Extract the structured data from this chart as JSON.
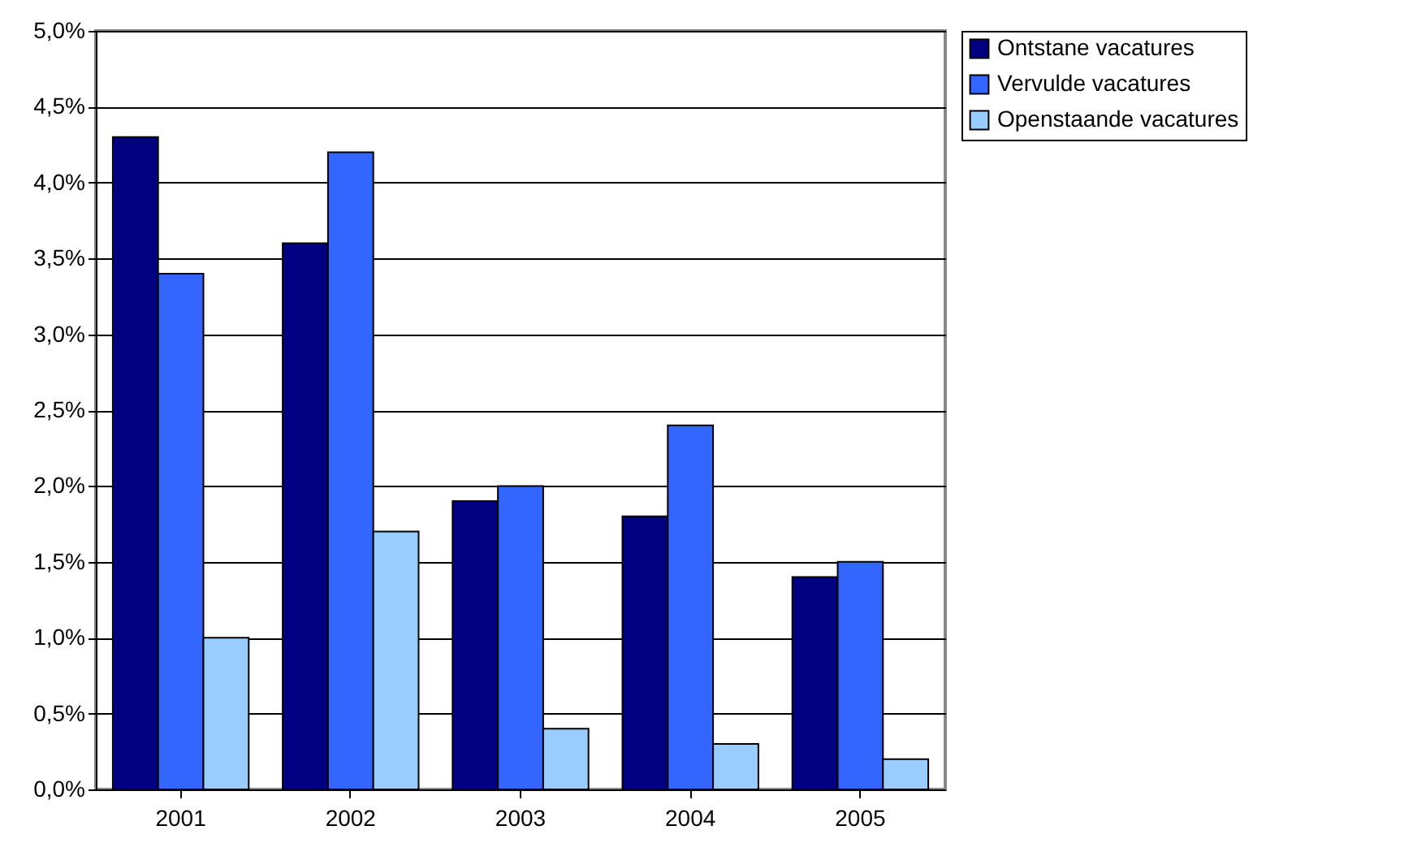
{
  "chart_data": {
    "type": "bar",
    "categories": [
      "2001",
      "2002",
      "2003",
      "2004",
      "2005"
    ],
    "series": [
      {
        "name": "Ontstane vacatures",
        "color": "#000080",
        "values": [
          4.3,
          3.6,
          1.9,
          1.8,
          1.4
        ]
      },
      {
        "name": "Vervulde vacatures",
        "color": "#3366ff",
        "values": [
          3.4,
          4.2,
          2.0,
          2.4,
          1.5
        ]
      },
      {
        "name": "Openstaande vacatures",
        "color": "#99ccff",
        "values": [
          1.0,
          1.7,
          0.4,
          0.3,
          0.2
        ]
      }
    ],
    "ylim": [
      0,
      5
    ],
    "yticks": [
      {
        "value": 0,
        "label": "0,0%"
      },
      {
        "value": 0.5,
        "label": "0,5%"
      },
      {
        "value": 1,
        "label": "1,0%"
      },
      {
        "value": 1.5,
        "label": "1,5%"
      },
      {
        "value": 2,
        "label": "2,0%"
      },
      {
        "value": 2.5,
        "label": "2,5%"
      },
      {
        "value": 3,
        "label": "3,0%"
      },
      {
        "value": 3.5,
        "label": "3,5%"
      },
      {
        "value": 4,
        "label": "4,0%"
      },
      {
        "value": 4.5,
        "label": "4,5%"
      },
      {
        "value": 5,
        "label": "5,0%"
      }
    ],
    "grid": "y",
    "legend": "right"
  }
}
